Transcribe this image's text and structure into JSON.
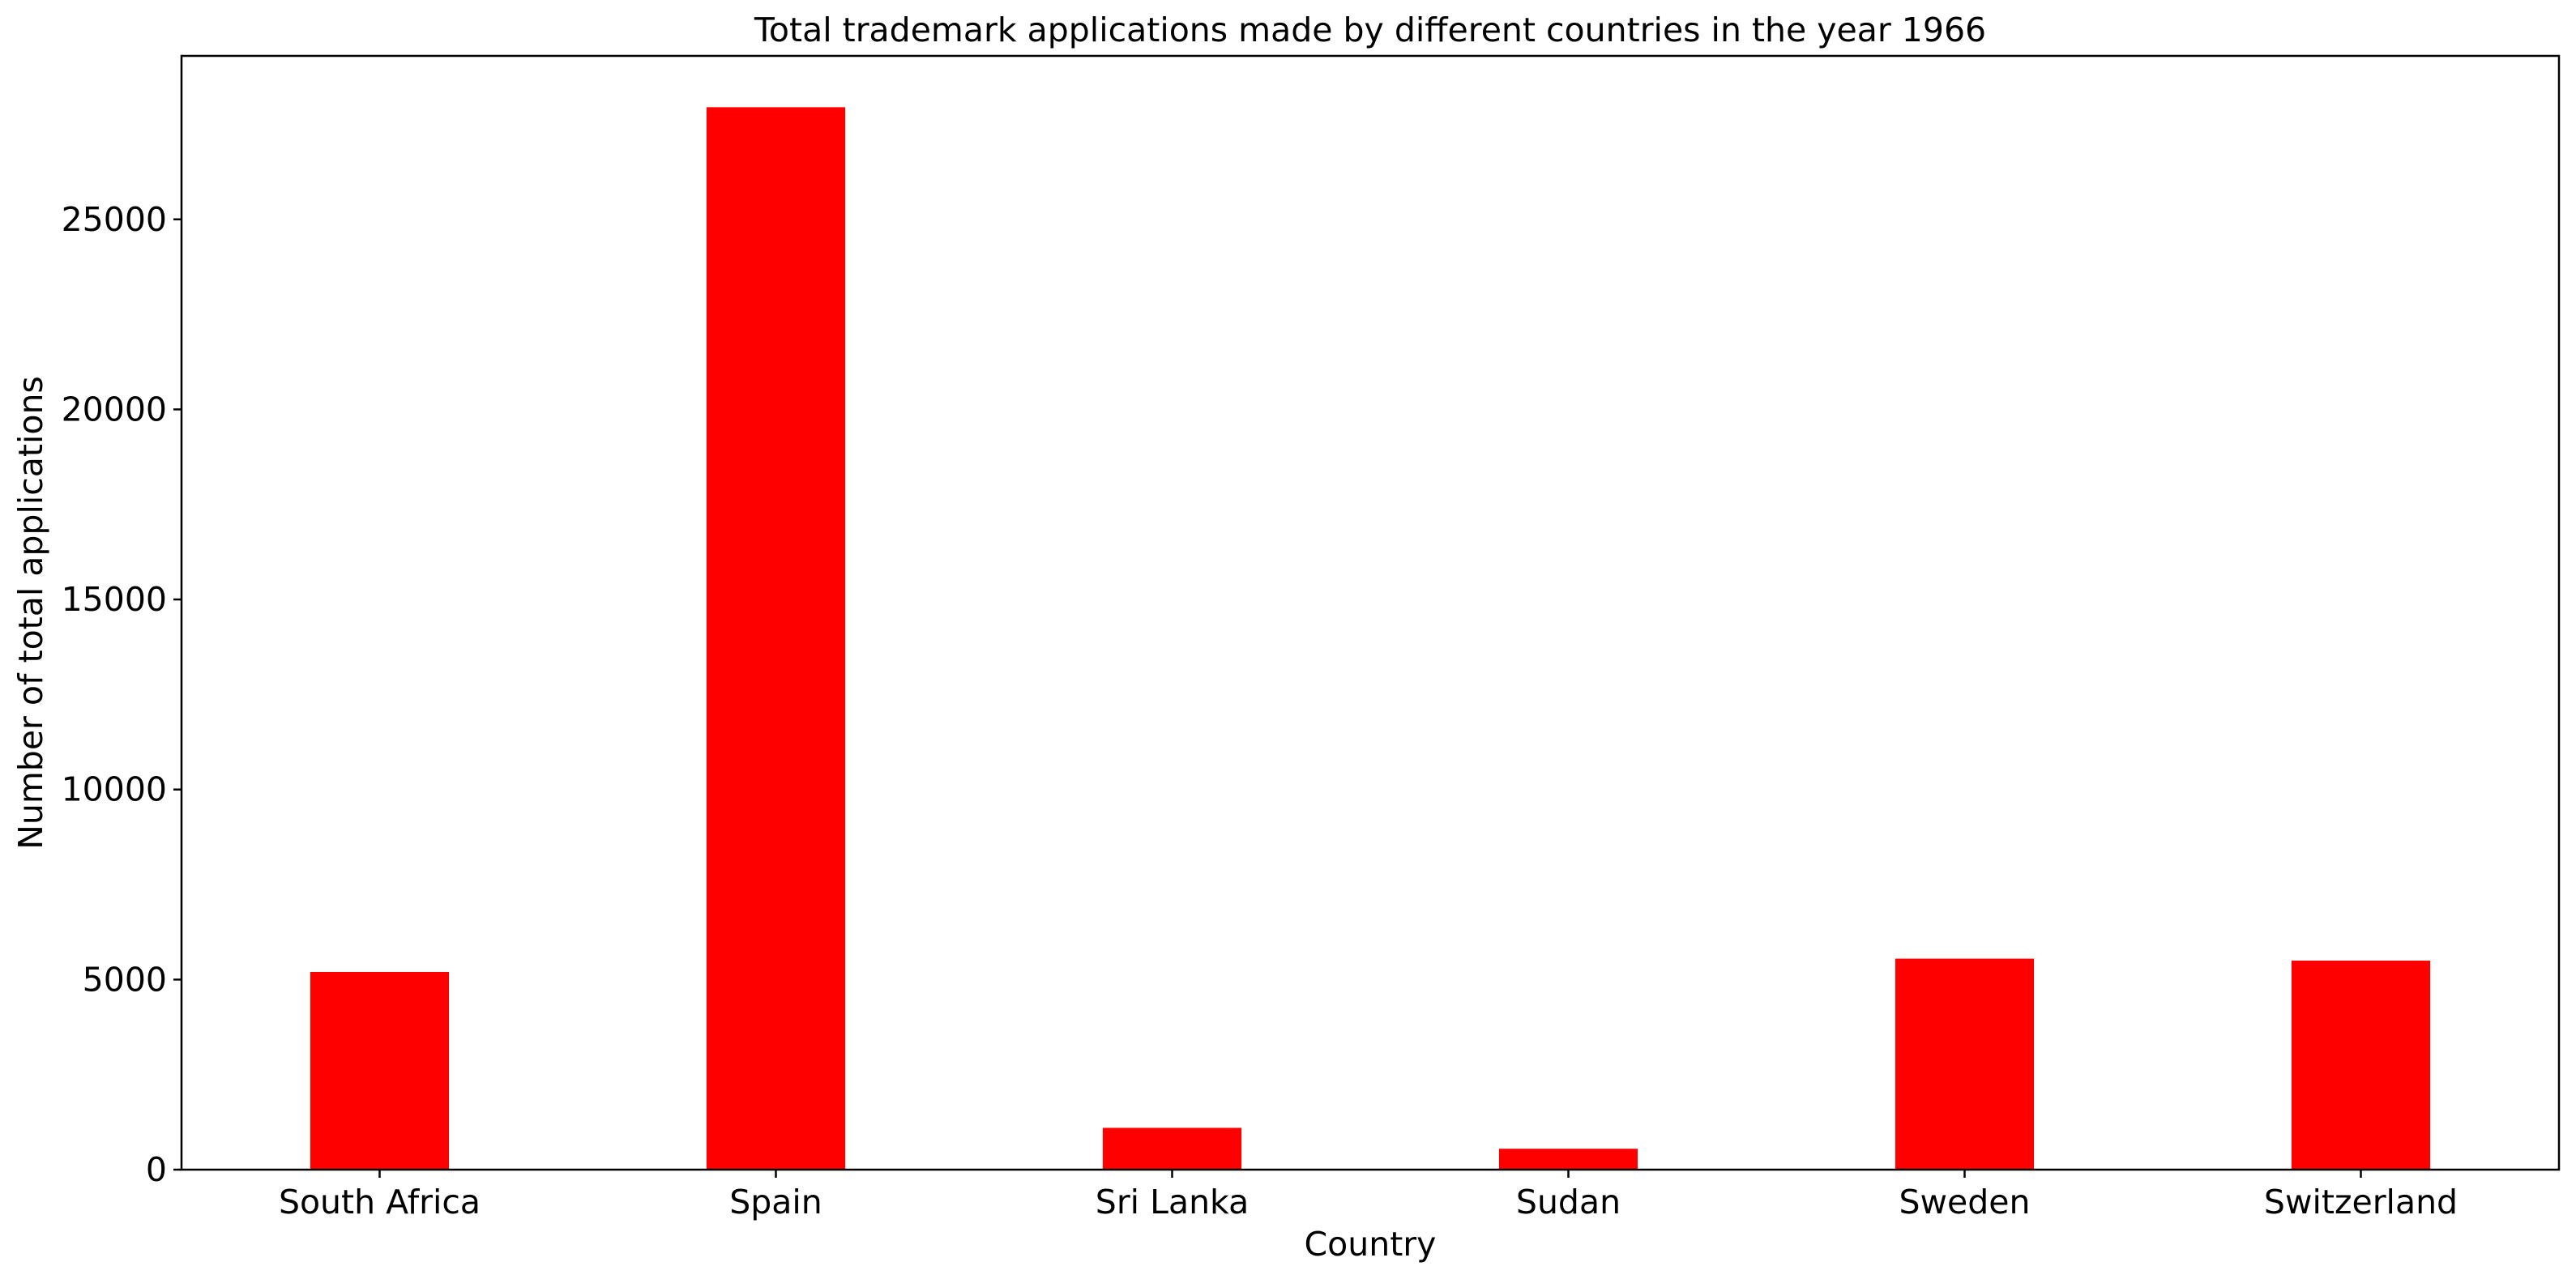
{
  "chart_data": {
    "type": "bar",
    "title": "Total trademark applications made by different countries in the year 1966",
    "xlabel": "Country",
    "ylabel": "Number of total applications",
    "categories": [
      "South Africa",
      "Spain",
      "Sri Lanka",
      "Sudan",
      "Sweden",
      "Switzerland"
    ],
    "values": [
      5200,
      27950,
      1100,
      550,
      5550,
      5500
    ],
    "ylim": [
      0,
      29300
    ],
    "yticks": [
      0,
      5000,
      10000,
      15000,
      20000,
      25000
    ],
    "bar_color": "#ff0000",
    "grid": false,
    "legend": "none"
  }
}
